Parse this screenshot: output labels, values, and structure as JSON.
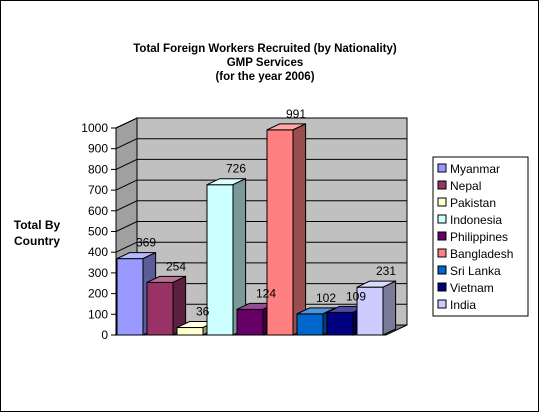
{
  "chart_data": {
    "type": "bar",
    "title_lines": [
      "Total Foreign Workers Recruited (by Nationality)",
      "GMP Services",
      "(for the year 2006)"
    ],
    "ylabel_lines": [
      "Total By",
      "Country"
    ],
    "xlabel": "",
    "ylim": [
      0,
      1000
    ],
    "yticks": [
      0,
      100,
      200,
      300,
      400,
      500,
      600,
      700,
      800,
      900,
      1000
    ],
    "grid": true,
    "legend_position": "right",
    "series": [
      {
        "name": "Myanmar",
        "value": 369,
        "color": "#9999FF"
      },
      {
        "name": "Nepal",
        "value": 254,
        "color": "#993366"
      },
      {
        "name": "Pakistan",
        "value": 36,
        "color": "#FFFFCC"
      },
      {
        "name": "Indonesia",
        "value": 726,
        "color": "#CCFFFF"
      },
      {
        "name": "Philippines",
        "value": 124,
        "color": "#660066"
      },
      {
        "name": "Bangladesh",
        "value": 991,
        "color": "#FF8080"
      },
      {
        "name": "Sri Lanka",
        "value": 102,
        "color": "#0066CC"
      },
      {
        "name": "Vietnam",
        "value": 109,
        "color": "#000080"
      },
      {
        "name": "India",
        "value": 231,
        "color": "#CCCCFF"
      }
    ],
    "data_labels": [
      "369",
      "254",
      "36",
      "726",
      "124",
      "991",
      "102",
      "109",
      "231"
    ]
  }
}
